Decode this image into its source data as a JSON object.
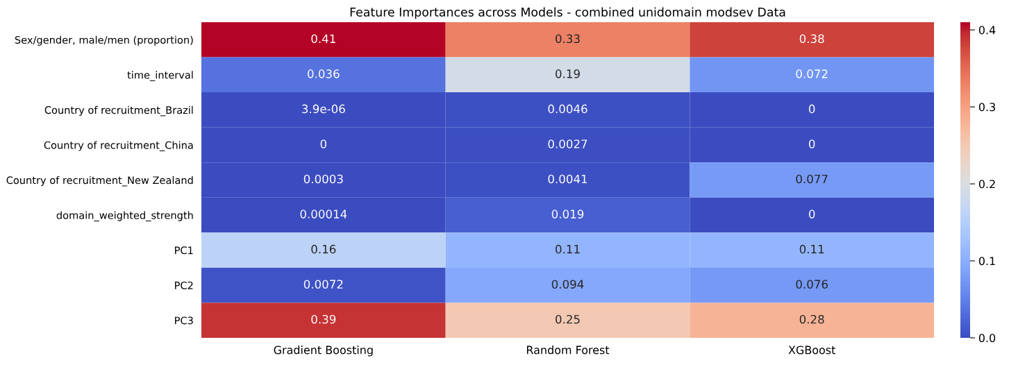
{
  "chart_data": {
    "type": "heatmap",
    "title": "Feature Importances across Models - combined unidomain modsev Data",
    "categories": [
      "Gradient Boosting",
      "Random Forest",
      "XGBoost"
    ],
    "y_categories": [
      "Sex/gender, male/men (proportion)",
      "time_interval",
      "Country of recruitment_Brazil",
      "Country of recruitment_China",
      "Country of recruitment_New Zealand",
      "domain_weighted_strength",
      "PC1",
      "PC2",
      "PC3"
    ],
    "cells": [
      [
        0.41,
        0.33,
        0.38
      ],
      [
        0.036,
        0.19,
        0.072
      ],
      [
        3.9e-06,
        0.0046,
        0
      ],
      [
        0,
        0.0027,
        0
      ],
      [
        0.0003,
        0.0041,
        0.077
      ],
      [
        0.00014,
        0.019,
        0
      ],
      [
        0.16,
        0.11,
        0.11
      ],
      [
        0.0072,
        0.094,
        0.076
      ],
      [
        0.39,
        0.25,
        0.28
      ]
    ],
    "cell_labels": [
      [
        "0.41",
        "0.33",
        "0.38"
      ],
      [
        "0.036",
        "0.19",
        "0.072"
      ],
      [
        "3.9e-06",
        "0.0046",
        "0"
      ],
      [
        "0",
        "0.0027",
        "0"
      ],
      [
        "0.0003",
        "0.0041",
        "0.077"
      ],
      [
        "0.00014",
        "0.019",
        "0"
      ],
      [
        "0.16",
        "0.11",
        "0.11"
      ],
      [
        "0.0072",
        "0.094",
        "0.076"
      ],
      [
        "0.39",
        "0.25",
        "0.28"
      ]
    ],
    "clim": [
      0,
      0.41
    ],
    "cticks": [
      {
        "value": 0,
        "label": "0.0"
      },
      0.1,
      0.2,
      0.3,
      0.4
    ]
  }
}
